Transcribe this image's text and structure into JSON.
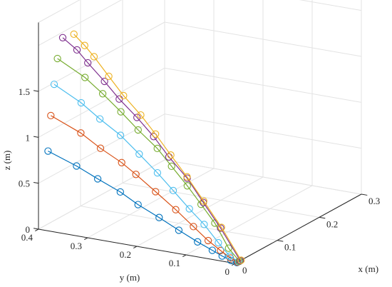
{
  "chart_data": {
    "type": "line",
    "title": "",
    "xlabel": "x (m)",
    "ylabel": "y (m)",
    "zlabel": "z (m)",
    "xlim": [
      0,
      0.3
    ],
    "ylim": [
      0,
      0.4
    ],
    "zlim": [
      0,
      1.5
    ],
    "x_ticks": [
      "0",
      "0.1",
      "0.2",
      "0.3"
    ],
    "y_ticks": [
      "0",
      "0.1",
      "0.2",
      "0.3",
      "0.4"
    ],
    "z_ticks": [
      "0",
      "0.5",
      "1",
      "1.5"
    ],
    "grid": true,
    "marker": "circle",
    "series": [
      {
        "color": "#0072BD",
        "points": [
          [
            0.004,
            0.384,
            0.855
          ],
          [
            0.004,
            0.326,
            0.747
          ],
          [
            0.004,
            0.283,
            0.647
          ],
          [
            0.004,
            0.237,
            0.547
          ],
          [
            0.004,
            0.201,
            0.443
          ],
          [
            0.004,
            0.158,
            0.342
          ],
          [
            0.004,
            0.118,
            0.241
          ],
          [
            0.004,
            0.08,
            0.15
          ],
          [
            0.004,
            0.05,
            0.086
          ],
          [
            0.004,
            0.03,
            0.043
          ],
          [
            0.004,
            0.012,
            0.011
          ],
          [
            0.004,
            0.0,
            0.0
          ]
        ]
      },
      {
        "color": "#D95319",
        "points": [
          [
            0.006,
            0.38,
            1.24
          ],
          [
            0.006,
            0.319,
            1.107
          ],
          [
            0.006,
            0.279,
            0.978
          ],
          [
            0.006,
            0.236,
            0.862
          ],
          [
            0.006,
            0.207,
            0.761
          ],
          [
            0.006,
            0.167,
            0.61
          ],
          [
            0.006,
            0.126,
            0.453
          ],
          [
            0.006,
            0.09,
            0.302
          ],
          [
            0.006,
            0.06,
            0.178
          ],
          [
            0.006,
            0.035,
            0.093
          ],
          [
            0.006,
            0.015,
            0.03
          ],
          [
            0.006,
            0.0,
            0.0
          ]
        ]
      },
      {
        "color": "#4DBEEE",
        "points": [
          [
            0.008,
            0.375,
            1.58
          ],
          [
            0.008,
            0.32,
            1.43
          ],
          [
            0.008,
            0.282,
            1.29
          ],
          [
            0.008,
            0.24,
            1.151
          ],
          [
            0.008,
            0.202,
            0.982
          ],
          [
            0.008,
            0.165,
            0.812
          ],
          [
            0.008,
            0.133,
            0.649
          ],
          [
            0.008,
            0.1,
            0.481
          ],
          [
            0.008,
            0.07,
            0.339
          ],
          [
            0.008,
            0.041,
            0.167
          ],
          [
            0.008,
            0.018,
            0.042
          ],
          [
            0.008,
            0.0,
            0.0
          ]
        ]
      },
      {
        "color": "#77AC30",
        "points": [
          [
            0.01,
            0.37,
            1.86
          ],
          [
            0.01,
            0.314,
            1.707
          ],
          [
            0.01,
            0.278,
            1.563
          ],
          [
            0.01,
            0.241,
            1.401
          ],
          [
            0.01,
            0.206,
            1.236
          ],
          [
            0.01,
            0.167,
            1.071
          ],
          [
            0.01,
            0.138,
            0.904
          ],
          [
            0.01,
            0.106,
            0.721
          ],
          [
            0.01,
            0.078,
            0.546
          ],
          [
            0.01,
            0.05,
            0.367
          ],
          [
            0.01,
            0.022,
            0.121
          ],
          [
            0.01,
            0.0,
            0.0
          ]
        ]
      },
      {
        "color": "#7E2F8E",
        "points": [
          [
            0.012,
            0.361,
            2.091
          ],
          [
            0.012,
            0.332,
            1.985
          ],
          [
            0.012,
            0.31,
            1.865
          ],
          [
            0.012,
            0.276,
            1.694
          ],
          [
            0.012,
            0.246,
            1.53
          ],
          [
            0.012,
            0.21,
            1.363
          ],
          [
            0.012,
            0.176,
            1.187
          ],
          [
            0.012,
            0.145,
            0.994
          ],
          [
            0.012,
            0.108,
            0.797
          ],
          [
            0.012,
            0.075,
            0.563
          ],
          [
            0.012,
            0.04,
            0.317
          ],
          [
            0.012,
            0.0,
            0.0
          ]
        ]
      },
      {
        "color": "#EDB120",
        "points": [
          [
            0.014,
            0.34,
            2.143
          ],
          [
            0.014,
            0.318,
            2.041
          ],
          [
            0.014,
            0.299,
            1.937
          ],
          [
            0.014,
            0.269,
            1.751
          ],
          [
            0.014,
            0.239,
            1.569
          ],
          [
            0.014,
            0.204,
            1.39
          ],
          [
            0.014,
            0.174,
            1.211
          ],
          [
            0.014,
            0.143,
            1.011
          ],
          [
            0.014,
            0.11,
            0.805
          ],
          [
            0.014,
            0.076,
            0.573
          ],
          [
            0.014,
            0.04,
            0.32
          ],
          [
            0.014,
            0.0,
            0.0
          ]
        ]
      }
    ]
  }
}
